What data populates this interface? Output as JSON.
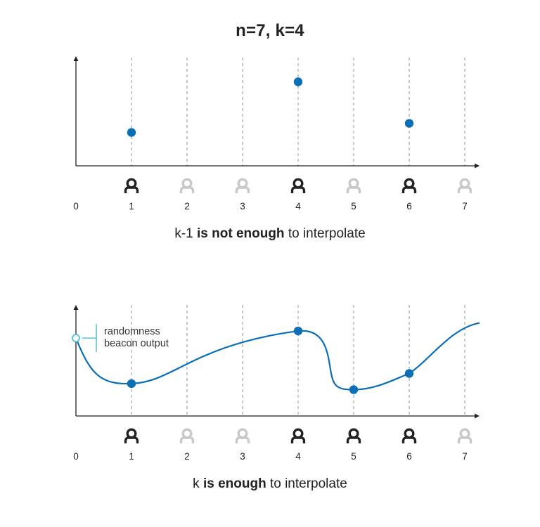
{
  "title": "n=7, k=4",
  "x_tick_labels": [
    "0",
    "1",
    "2",
    "3",
    "4",
    "5",
    "6",
    "7"
  ],
  "colors": {
    "point": "#0b6fb8",
    "curve": "#0b6fb8",
    "beacon": "#5bc4d4",
    "axis": "#222222",
    "gridline": "#bbbbbb",
    "participant_active": "#222222",
    "participant_inactive": "#c8c8c8"
  },
  "participant_icon": "user-icon",
  "panels": [
    {
      "id": "top",
      "caption": {
        "pre": "k-1 ",
        "bold": "is not enough",
        "post": " to interpolate"
      },
      "active_participants": [
        1,
        4,
        6
      ],
      "points": [
        {
          "x": 1,
          "y": 0.33
        },
        {
          "x": 4,
          "y": 0.83
        },
        {
          "x": 6,
          "y": 0.42
        }
      ],
      "show_curve": false
    },
    {
      "id": "bottom",
      "caption": {
        "pre": "k ",
        "bold": "is enough",
        "post": " to interpolate"
      },
      "active_participants": [
        1,
        4,
        5,
        6
      ],
      "points": [
        {
          "x": 1,
          "y": 0.32
        },
        {
          "x": 4,
          "y": 0.84
        },
        {
          "x": 5,
          "y": 0.26
        },
        {
          "x": 6,
          "y": 0.42
        }
      ],
      "show_curve": true,
      "beacon": {
        "x": 0,
        "y": 0.77,
        "label_lines": [
          "randomness",
          "beacon output"
        ]
      }
    }
  ]
}
